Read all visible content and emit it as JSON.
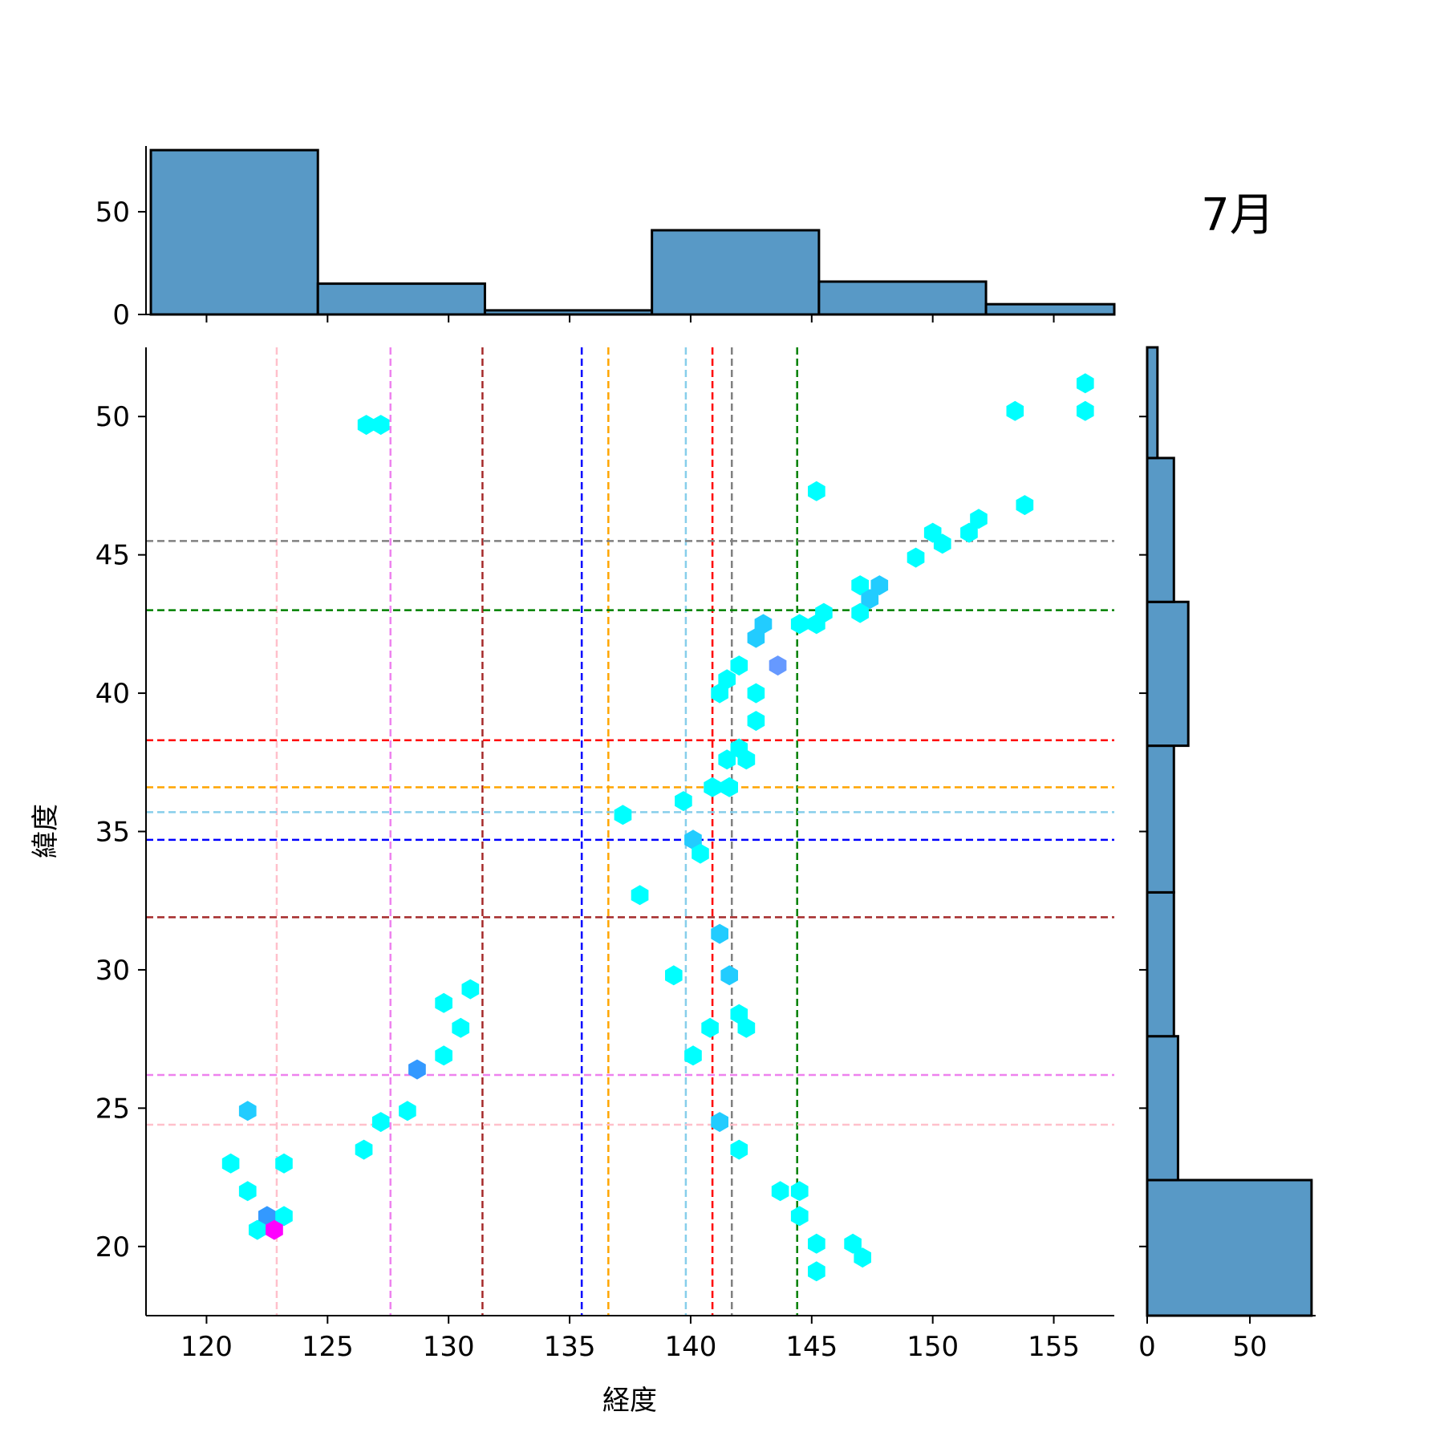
{
  "chart_data": {
    "type": "hexbin-joint",
    "title": "7月",
    "xlabel": "経度",
    "ylabel": "緯度",
    "xlim": [
      117.5,
      157.5
    ],
    "ylim": [
      17.5,
      52.5
    ],
    "xticks": [
      "120",
      "125",
      "130",
      "135",
      "140",
      "145",
      "150",
      "155"
    ],
    "yticks": [
      "20",
      "25",
      "30",
      "35",
      "40",
      "45",
      "50"
    ],
    "x_hist": {
      "bins": [
        {
          "x0": 117.7,
          "x1": 124.6,
          "count": 80
        },
        {
          "x0": 124.6,
          "x1": 131.5,
          "count": 15
        },
        {
          "x0": 131.5,
          "x1": 138.4,
          "count": 2
        },
        {
          "x0": 138.4,
          "x1": 145.3,
          "count": 41
        },
        {
          "x0": 145.3,
          "x1": 152.2,
          "count": 16
        },
        {
          "x0": 152.2,
          "x1": 159.1,
          "count": 5
        }
      ],
      "yticks": [
        "0",
        "50"
      ]
    },
    "y_hist": {
      "bins": [
        {
          "y0": 17.5,
          "y1": 22.4,
          "count": 80
        },
        {
          "y0": 22.4,
          "y1": 27.6,
          "count": 15
        },
        {
          "y0": 27.6,
          "y1": 32.8,
          "count": 13
        },
        {
          "y0": 32.8,
          "y1": 38.1,
          "count": 13
        },
        {
          "y0": 38.1,
          "y1": 43.3,
          "count": 20
        },
        {
          "y0": 43.3,
          "y1": 48.5,
          "count": 13
        },
        {
          "y0": 48.5,
          "y1": 52.5,
          "count": 5
        }
      ],
      "xticks": [
        "0",
        "50"
      ]
    },
    "vlines": [
      {
        "x": 122.9,
        "color": "#ffc0cb"
      },
      {
        "x": 127.6,
        "color": "#ee82ee"
      },
      {
        "x": 131.4,
        "color": "#a52a2a"
      },
      {
        "x": 135.5,
        "color": "#0000ff"
      },
      {
        "x": 136.6,
        "color": "#ffa500"
      },
      {
        "x": 139.8,
        "color": "#87ceeb"
      },
      {
        "x": 140.9,
        "color": "#ff0000"
      },
      {
        "x": 141.7,
        "color": "#808080"
      },
      {
        "x": 144.4,
        "color": "#008000"
      }
    ],
    "hlines": [
      {
        "y": 24.4,
        "color": "#ffc0cb"
      },
      {
        "y": 26.2,
        "color": "#ee82ee"
      },
      {
        "y": 31.9,
        "color": "#a52a2a"
      },
      {
        "y": 34.7,
        "color": "#0000ff"
      },
      {
        "y": 35.7,
        "color": "#87ceeb"
      },
      {
        "y": 36.6,
        "color": "#ffa500"
      },
      {
        "y": 38.3,
        "color": "#ff0000"
      },
      {
        "y": 43.0,
        "color": "#008000"
      },
      {
        "y": 45.5,
        "color": "#808080"
      }
    ],
    "hexbins": [
      {
        "x": 156.3,
        "y": 51.2,
        "color": "#00ffff"
      },
      {
        "x": 156.3,
        "y": 50.2,
        "color": "#00ffff"
      },
      {
        "x": 153.4,
        "y": 50.2,
        "color": "#00ffff"
      },
      {
        "x": 126.6,
        "y": 49.7,
        "color": "#00ffff"
      },
      {
        "x": 127.2,
        "y": 49.7,
        "color": "#00ffff"
      },
      {
        "x": 145.2,
        "y": 47.3,
        "color": "#00ffff"
      },
      {
        "x": 153.8,
        "y": 46.8,
        "color": "#00ffff"
      },
      {
        "x": 151.9,
        "y": 46.3,
        "color": "#00ffff"
      },
      {
        "x": 150.0,
        "y": 45.8,
        "color": "#00ffff"
      },
      {
        "x": 151.5,
        "y": 45.8,
        "color": "#00ffff"
      },
      {
        "x": 150.4,
        "y": 45.4,
        "color": "#00ffff"
      },
      {
        "x": 149.3,
        "y": 44.9,
        "color": "#00ffff"
      },
      {
        "x": 147.0,
        "y": 43.9,
        "color": "#00ffff"
      },
      {
        "x": 147.8,
        "y": 43.9,
        "color": "#22ccff"
      },
      {
        "x": 147.4,
        "y": 43.4,
        "color": "#22ccff"
      },
      {
        "x": 145.5,
        "y": 42.9,
        "color": "#00ffff"
      },
      {
        "x": 147.0,
        "y": 42.9,
        "color": "#00ffff"
      },
      {
        "x": 143.0,
        "y": 42.5,
        "color": "#22ccff"
      },
      {
        "x": 144.5,
        "y": 42.5,
        "color": "#00ffff"
      },
      {
        "x": 145.2,
        "y": 42.5,
        "color": "#00ffff"
      },
      {
        "x": 142.7,
        "y": 42.0,
        "color": "#22ccff"
      },
      {
        "x": 142.0,
        "y": 41.0,
        "color": "#00ffff"
      },
      {
        "x": 143.6,
        "y": 41.0,
        "color": "#6699ff"
      },
      {
        "x": 141.5,
        "y": 40.5,
        "color": "#00ffff"
      },
      {
        "x": 141.2,
        "y": 40.0,
        "color": "#00ffff"
      },
      {
        "x": 142.7,
        "y": 40.0,
        "color": "#00ffff"
      },
      {
        "x": 142.7,
        "y": 39.0,
        "color": "#00ffff"
      },
      {
        "x": 142.0,
        "y": 38.0,
        "color": "#00ffff"
      },
      {
        "x": 141.5,
        "y": 37.6,
        "color": "#00ffff"
      },
      {
        "x": 142.3,
        "y": 37.6,
        "color": "#00ffff"
      },
      {
        "x": 140.9,
        "y": 36.6,
        "color": "#00ffff"
      },
      {
        "x": 141.6,
        "y": 36.6,
        "color": "#00ffff"
      },
      {
        "x": 139.7,
        "y": 36.1,
        "color": "#00ffff"
      },
      {
        "x": 137.2,
        "y": 35.6,
        "color": "#00ffff"
      },
      {
        "x": 140.1,
        "y": 34.7,
        "color": "#22ccff"
      },
      {
        "x": 140.4,
        "y": 34.2,
        "color": "#00ffff"
      },
      {
        "x": 137.9,
        "y": 32.7,
        "color": "#00ffff"
      },
      {
        "x": 141.2,
        "y": 31.3,
        "color": "#22ccff"
      },
      {
        "x": 139.3,
        "y": 29.8,
        "color": "#00ffff"
      },
      {
        "x": 141.6,
        "y": 29.8,
        "color": "#22ccff"
      },
      {
        "x": 130.9,
        "y": 29.3,
        "color": "#00ffff"
      },
      {
        "x": 129.8,
        "y": 28.8,
        "color": "#00ffff"
      },
      {
        "x": 142.0,
        "y": 28.4,
        "color": "#00ffff"
      },
      {
        "x": 130.5,
        "y": 27.9,
        "color": "#00ffff"
      },
      {
        "x": 140.8,
        "y": 27.9,
        "color": "#00ffff"
      },
      {
        "x": 142.3,
        "y": 27.9,
        "color": "#00ffff"
      },
      {
        "x": 129.8,
        "y": 26.9,
        "color": "#00ffff"
      },
      {
        "x": 140.1,
        "y": 26.9,
        "color": "#00ffff"
      },
      {
        "x": 128.7,
        "y": 26.4,
        "color": "#3399ff"
      },
      {
        "x": 121.7,
        "y": 24.9,
        "color": "#22ccff"
      },
      {
        "x": 128.3,
        "y": 24.9,
        "color": "#00ffff"
      },
      {
        "x": 127.2,
        "y": 24.5,
        "color": "#00ffff"
      },
      {
        "x": 141.2,
        "y": 24.5,
        "color": "#22ccff"
      },
      {
        "x": 126.5,
        "y": 23.5,
        "color": "#00ffff"
      },
      {
        "x": 142.0,
        "y": 23.5,
        "color": "#00ffff"
      },
      {
        "x": 121.0,
        "y": 23.0,
        "color": "#00ffff"
      },
      {
        "x": 123.2,
        "y": 23.0,
        "color": "#00ffff"
      },
      {
        "x": 121.7,
        "y": 22.0,
        "color": "#00ffff"
      },
      {
        "x": 143.7,
        "y": 22.0,
        "color": "#00ffff"
      },
      {
        "x": 144.5,
        "y": 22.0,
        "color": "#00ffff"
      },
      {
        "x": 122.5,
        "y": 21.1,
        "color": "#3399ff"
      },
      {
        "x": 123.2,
        "y": 21.1,
        "color": "#00ffff"
      },
      {
        "x": 144.5,
        "y": 21.1,
        "color": "#00ffff"
      },
      {
        "x": 122.1,
        "y": 20.6,
        "color": "#00ffff"
      },
      {
        "x": 122.8,
        "y": 20.6,
        "color": "#ff00ff"
      },
      {
        "x": 145.2,
        "y": 20.1,
        "color": "#00ffff"
      },
      {
        "x": 146.7,
        "y": 20.1,
        "color": "#00ffff"
      },
      {
        "x": 147.1,
        "y": 19.6,
        "color": "#00ffff"
      },
      {
        "x": 145.2,
        "y": 19.1,
        "color": "#00ffff"
      }
    ]
  }
}
